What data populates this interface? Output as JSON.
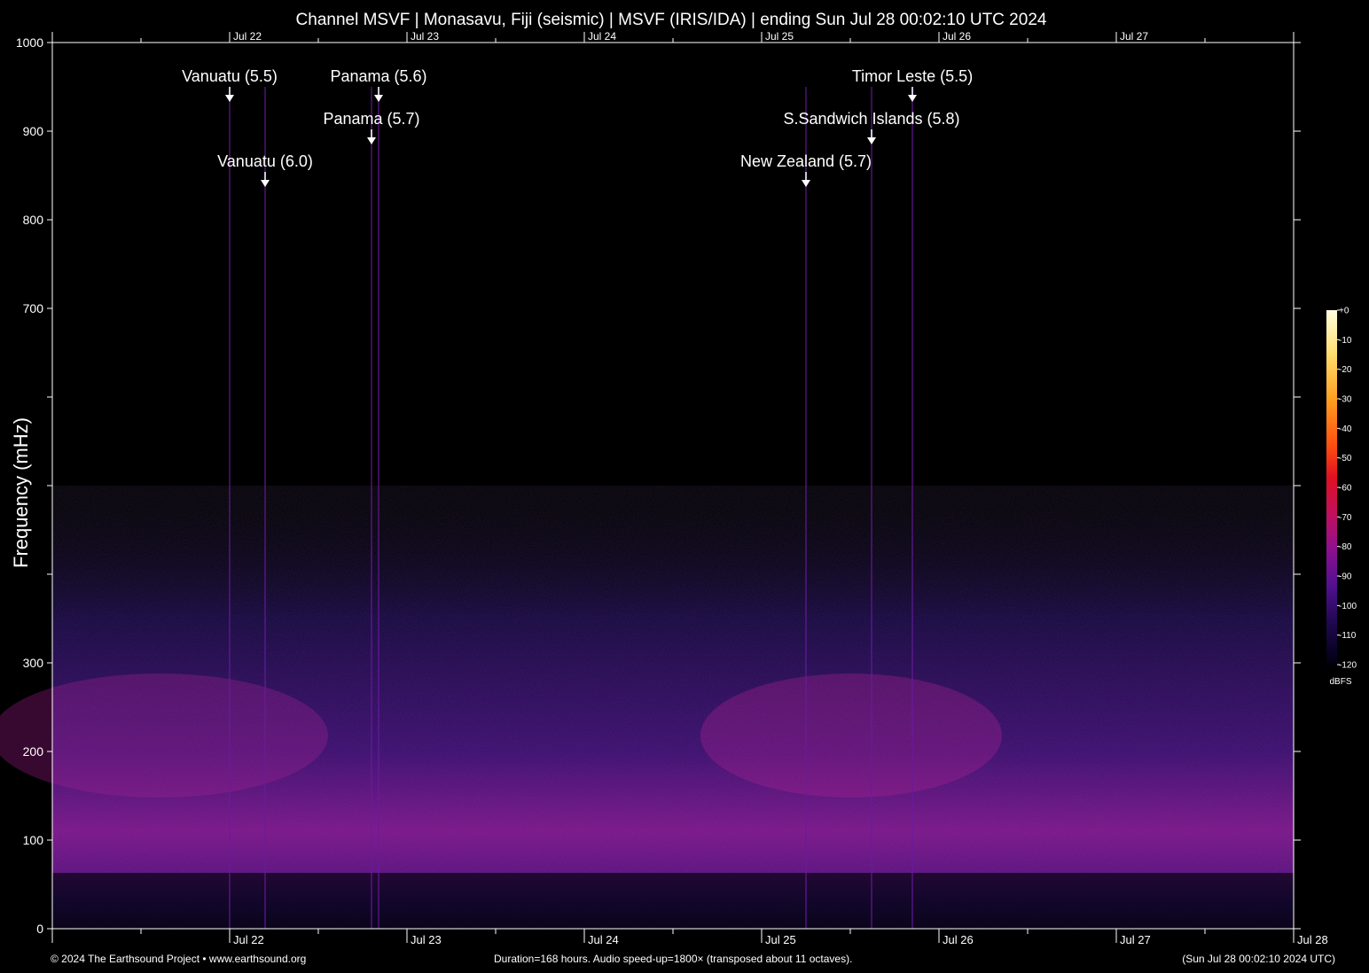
{
  "chart_data": {
    "type": "heatmap",
    "title": "Channel MSVF | Monasavu, Fiji (seismic) | MSVF (IRIS/IDA) | ending Sun Jul 28 00:02:10 UTC 2024",
    "ylabel": "Frequency (mHz)",
    "xlabel": "",
    "ylim": [
      0,
      1000
    ],
    "y_ticks": [
      0,
      100,
      200,
      300,
      400,
      500,
      600,
      700,
      800,
      900,
      1000
    ],
    "y_tick_labels": [
      "0",
      "100",
      "200",
      "300",
      "",
      "",
      "",
      "700",
      "800",
      "900",
      "1000"
    ],
    "x_range_days": [
      0,
      7
    ],
    "x_ticks": [
      {
        "day": 1,
        "label": "Jul 22"
      },
      {
        "day": 2,
        "label": "Jul 23"
      },
      {
        "day": 3,
        "label": "Jul 24"
      },
      {
        "day": 4,
        "label": "Jul 25"
      },
      {
        "day": 5,
        "label": "Jul 26"
      },
      {
        "day": 6,
        "label": "Jul 27"
      },
      {
        "day": 7,
        "label": "Jul 28"
      }
    ],
    "colorbar": {
      "unit": "dBFS",
      "range": [
        -120,
        0
      ],
      "ticks": [
        "+0",
        "-10",
        "-20",
        "-30",
        "-40",
        "-50",
        "-60",
        "-70",
        "-80",
        "-90",
        "-100",
        "-110",
        "-120"
      ],
      "colors": [
        "#fffbe0",
        "#ffe070",
        "#ffa020",
        "#ff5010",
        "#e01020",
        "#c01060",
        "#8a1090",
        "#501090",
        "#200850",
        "#000010"
      ]
    },
    "energy_band_mhz": [
      150,
      300
    ],
    "events": [
      {
        "label": "Vanuatu (5.5)",
        "day": 1.0,
        "row": 1
      },
      {
        "label": "Panama (5.6)",
        "day": 1.84,
        "row": 1
      },
      {
        "label": "Timor Leste (5.5)",
        "day": 4.85,
        "row": 1
      },
      {
        "label": "Panama (5.7)",
        "day": 1.8,
        "row": 2
      },
      {
        "label": "S.Sandwich Islands (5.8)",
        "day": 4.62,
        "row": 2
      },
      {
        "label": "Vanuatu (6.0)",
        "day": 1.2,
        "row": 3
      },
      {
        "label": "New Zealand (5.7)",
        "day": 4.25,
        "row": 3
      }
    ]
  },
  "footer": {
    "left": "© 2024 The Earthsound Project • www.earthsound.org",
    "center": "Duration=168 hours. Audio speed-up=1800× (transposed about 11 octaves).",
    "right": "(Sun Jul 28 00:02:10 2024 UTC)"
  }
}
